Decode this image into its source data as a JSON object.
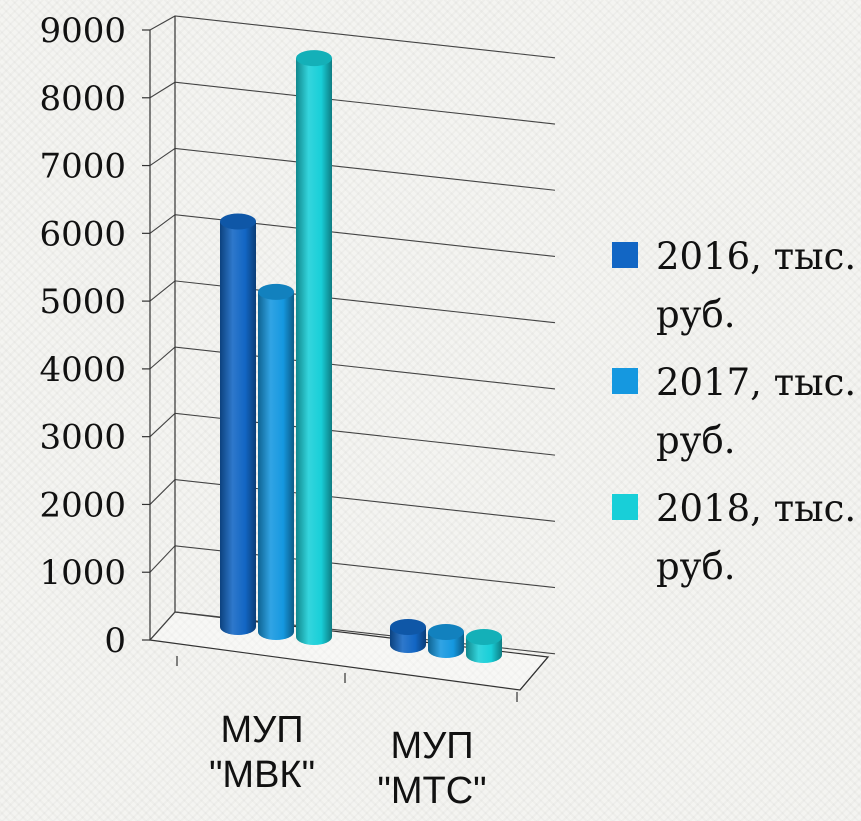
{
  "chart_data": {
    "type": "bar",
    "style": "3d-cylinder",
    "categories": [
      "МУП \"МВК\"",
      "МУП \"МТС\""
    ],
    "category_lines": [
      [
        "МУП",
        "\"МВК\""
      ],
      [
        "МУП",
        "\"МТС\""
      ]
    ],
    "series": [
      {
        "name": "2016, тыс. руб.",
        "label_lines": [
          "2016, тыс.",
          "руб."
        ],
        "color": "#1266c4",
        "values": [
          6200,
          250
        ]
      },
      {
        "name": "2017, тыс. руб.",
        "label_lines": [
          "2017, тыс.",
          "руб."
        ],
        "color": "#1598e0",
        "values": [
          5200,
          200
        ]
      },
      {
        "name": "2018, тыс. руб.",
        "label_lines": [
          "2018, тыс.",
          "руб."
        ],
        "color": "#18cfd8",
        "values": [
          8850,
          0
        ]
      }
    ],
    "ylim": [
      0,
      9000
    ],
    "yticks": [
      "0",
      "1000",
      "2000",
      "3000",
      "4000",
      "5000",
      "6000",
      "7000",
      "8000",
      "9000"
    ],
    "grid": true,
    "legend_position": "right"
  }
}
